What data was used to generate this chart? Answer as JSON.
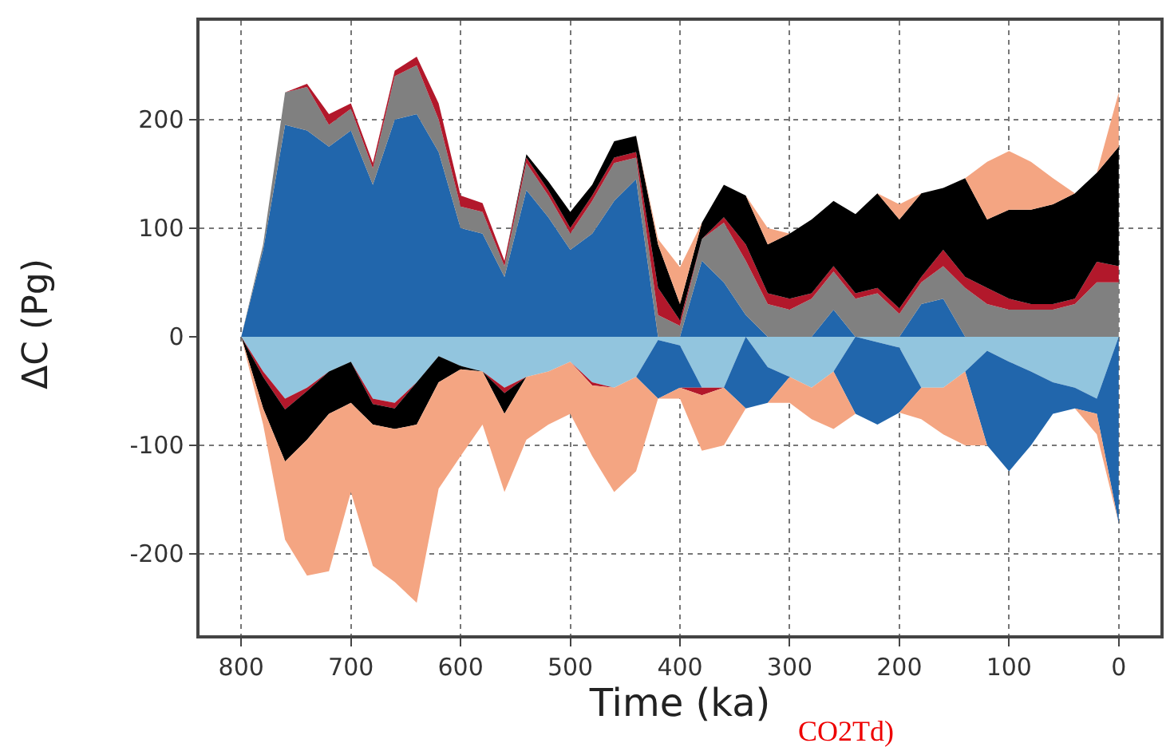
{
  "chart_data": [
    {
      "type": "area",
      "stacked": true,
      "ylabel": "ΔC (Pg)",
      "x": [
        800,
        780,
        760,
        740,
        720,
        700,
        680,
        660,
        640,
        620,
        600,
        580,
        560,
        540,
        520,
        500,
        480,
        460,
        440,
        420,
        400,
        380,
        360,
        340,
        320,
        300,
        280,
        260,
        240,
        220,
        200,
        180,
        160,
        140,
        120,
        100,
        80,
        60,
        40,
        20,
        0
      ],
      "xlim": [
        838,
        -38
      ],
      "ylim": [
        0,
        291
      ],
      "xticks": [
        800,
        700,
        600,
        500,
        400,
        300,
        200,
        100,
        0
      ],
      "yticks": [
        0,
        100,
        200
      ],
      "tick_labels": "y",
      "grid": true,
      "line_style": "dotted",
      "series": [
        {
          "color": "#2166ac",
          "values": [
            0,
            80,
            195,
            190,
            175,
            190,
            140,
            200,
            205,
            170,
            100,
            95,
            55,
            135,
            110,
            80,
            95,
            125,
            145,
            0,
            0,
            70,
            50,
            20,
            0,
            null,
            0,
            25,
            0,
            null,
            0,
            30,
            35,
            0,
            null,
            null,
            null,
            null,
            null,
            null,
            null
          ]
        },
        {
          "color": "#808080",
          "values": [
            0,
            5,
            30,
            40,
            20,
            20,
            15,
            40,
            45,
            30,
            20,
            20,
            10,
            25,
            20,
            15,
            30,
            35,
            20,
            20,
            10,
            20,
            55,
            50,
            30,
            25,
            35,
            35,
            35,
            40,
            21,
            20,
            30,
            45,
            30,
            25,
            25,
            25,
            30,
            50,
            50
          ]
        },
        {
          "color": "#b2182b",
          "values": [
            null,
            null,
            0,
            3,
            10,
            5,
            5,
            5,
            8,
            15,
            10,
            8,
            5,
            5,
            5,
            5,
            5,
            5,
            5,
            25,
            5,
            0,
            5,
            15,
            10,
            10,
            5,
            5,
            5,
            5,
            5,
            5,
            15,
            10,
            15,
            10,
            5,
            5,
            5,
            19,
            15
          ]
        },
        {
          "color": "#000000",
          "values": [
            null,
            null,
            null,
            null,
            null,
            null,
            null,
            null,
            null,
            null,
            null,
            null,
            0,
            3,
            8,
            15,
            10,
            15,
            15,
            40,
            15,
            15,
            30,
            45,
            45,
            60,
            68,
            60,
            73,
            87,
            82,
            77,
            57,
            91,
            63,
            82,
            87,
            92,
            97,
            82,
            110
          ]
        },
        {
          "color": "#f4a582",
          "values": [
            null,
            null,
            null,
            null,
            null,
            null,
            null,
            null,
            null,
            null,
            null,
            null,
            null,
            null,
            null,
            null,
            null,
            null,
            0,
            5,
            34,
            0,
            null,
            0,
            15,
            0,
            null,
            null,
            null,
            0,
            14,
            0,
            null,
            0,
            53,
            54,
            44,
            24,
            0,
            0,
            50
          ]
        }
      ]
    },
    {
      "type": "area",
      "stacked": true,
      "xlabel": "Time (ka)",
      "annotations": [
        "CO2Td)"
      ],
      "x": [
        800,
        780,
        760,
        740,
        720,
        700,
        680,
        660,
        640,
        620,
        600,
        580,
        560,
        540,
        520,
        500,
        480,
        460,
        440,
        420,
        400,
        380,
        360,
        340,
        320,
        300,
        280,
        260,
        240,
        220,
        200,
        180,
        160,
        140,
        120,
        100,
        80,
        60,
        40,
        20,
        0
      ],
      "xlim": [
        838,
        -38
      ],
      "ylim": [
        -275,
        0
      ],
      "xticks": [
        800,
        700,
        600,
        500,
        400,
        300,
        200,
        100,
        0
      ],
      "yticks": [
        -200,
        -100
      ],
      "grid": true,
      "line_style": "dotted",
      "series": [
        {
          "color": "#92c5de",
          "values": [
            0,
            -32,
            -57,
            -47,
            -32,
            -23,
            -57,
            -61,
            -42,
            -18,
            -27,
            -32,
            -47,
            -37,
            -32,
            -23,
            -42,
            -47,
            -37,
            -3,
            -8,
            -47,
            -47,
            0,
            -28,
            -37,
            -47,
            -32,
            0,
            -5,
            -10,
            -47,
            -47,
            -32,
            -13,
            -23,
            -32,
            -42,
            -47,
            -57,
            0
          ]
        },
        {
          "color": "#2166ac",
          "values": [
            null,
            null,
            null,
            null,
            null,
            null,
            null,
            null,
            null,
            null,
            null,
            null,
            null,
            null,
            null,
            null,
            null,
            null,
            0,
            -54,
            -39,
            0,
            0,
            -66,
            -33,
            0,
            null,
            0,
            -71,
            -76,
            -60,
            0,
            null,
            0,
            -87,
            -101,
            -68,
            -29,
            -19,
            -14,
            -172
          ]
        },
        {
          "color": "#b2182b",
          "values": [
            0,
            -5,
            -10,
            -3,
            0,
            0,
            -5,
            -5,
            0,
            null,
            null,
            0,
            -5,
            0,
            null,
            0,
            -3,
            0,
            null,
            null,
            0,
            -7,
            0,
            null,
            null,
            null,
            null,
            null,
            null,
            null,
            null,
            null,
            null,
            null,
            null,
            null,
            null,
            null,
            null,
            null,
            null
          ]
        },
        {
          "color": "#000000",
          "values": [
            0,
            -29,
            -48,
            -45,
            -39,
            -38,
            -19,
            -19,
            -39,
            -24,
            -3,
            0,
            -19,
            0,
            null,
            null,
            null,
            null,
            null,
            null,
            null,
            null,
            null,
            null,
            null,
            null,
            null,
            null,
            null,
            null,
            null,
            null,
            null,
            null,
            null,
            null,
            null,
            null,
            null,
            null,
            null
          ]
        },
        {
          "color": "#f4a582",
          "values": [
            0,
            -15,
            -72,
            -125,
            -145,
            -82,
            -130,
            -141,
            -164,
            -98,
            -80,
            -49,
            -72,
            -58,
            -49,
            -48,
            -65,
            -96,
            -87,
            0,
            -10,
            -51,
            -53,
            0,
            0,
            -24,
            -29,
            -53,
            0,
            null,
            0,
            -29,
            -43,
            -68,
            0,
            null,
            null,
            null,
            0,
            -19,
            0
          ]
        }
      ]
    }
  ]
}
